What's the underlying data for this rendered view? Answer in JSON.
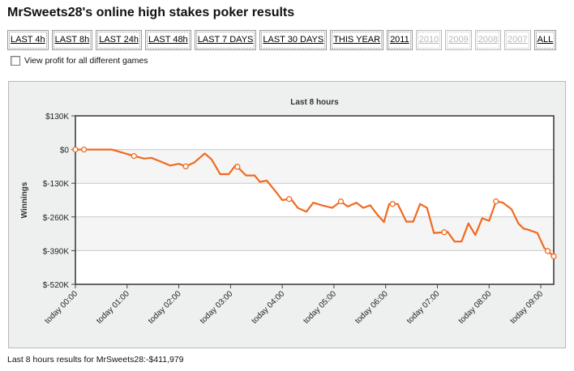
{
  "page": {
    "title": "MrSweets28's online high stakes poker results",
    "tabs": [
      {
        "label": "LAST 4h",
        "enabled": true
      },
      {
        "label": "LAST 8h",
        "enabled": true
      },
      {
        "label": "LAST 24h",
        "enabled": true
      },
      {
        "label": "LAST 48h",
        "enabled": true
      },
      {
        "label": "LAST 7 DAYS",
        "enabled": true
      },
      {
        "label": "LAST 30 DAYS",
        "enabled": true
      },
      {
        "label": "THIS YEAR",
        "enabled": true
      },
      {
        "label": "2011",
        "enabled": true
      },
      {
        "label": "2010",
        "enabled": false
      },
      {
        "label": "2009",
        "enabled": false
      },
      {
        "label": "2008",
        "enabled": false
      },
      {
        "label": "2007",
        "enabled": false
      },
      {
        "label": "ALL",
        "enabled": true
      }
    ],
    "checkbox_label": "View profit for all different games",
    "checkbox_checked": false,
    "footer": "Last 8 hours results for MrSweets28:-$411,979"
  },
  "colors": {
    "line": "#f06a20",
    "plot_background": "#ffffff",
    "plot_band": "#f5f5f5",
    "panel_background": "#eef0ef"
  },
  "chart_data": {
    "type": "line",
    "title": "Last 8 hours",
    "xlabel": "",
    "ylabel": "Winnings",
    "ylim": [
      -520,
      130
    ],
    "y_unit": "thousand USD",
    "y_ticks": [
      130,
      0,
      -130,
      -260,
      -390,
      -520
    ],
    "y_tick_labels": [
      "$130K",
      "$0",
      "$-130K",
      "$-260K",
      "$-390K",
      "$-520K"
    ],
    "xlim": [
      0,
      555
    ],
    "x_unit": "minutes since today 00:00",
    "x_ticks": [
      0,
      60,
      120,
      180,
      240,
      300,
      360,
      420,
      480,
      540
    ],
    "x_tick_labels": [
      "today 00:00",
      "today 01:00",
      "today 02:00",
      "today 03:00",
      "today 04:00",
      "today 05:00",
      "today 06:00",
      "today 07:00",
      "today 08:00",
      "today 09:00"
    ],
    "grid": true,
    "legend": "none",
    "series": [
      {
        "x": [
          0,
          10,
          42,
          68,
          80,
          88,
          98,
          110,
          120,
          128,
          138,
          150,
          158,
          168,
          178,
          186,
          198,
          208,
          214,
          222,
          232,
          240,
          250,
          258,
          268,
          276,
          286,
          298,
          308,
          316,
          326,
          334,
          342,
          350,
          358,
          364,
          374,
          384,
          392,
          400,
          408,
          416,
          424,
          432,
          440,
          448,
          456,
          464,
          472,
          480,
          488,
          496,
          506,
          514,
          520,
          526,
          536,
          544,
          555
        ],
        "y": [
          0,
          0,
          0,
          -25,
          -35,
          -32,
          -45,
          -62,
          -55,
          -65,
          -50,
          -15,
          -38,
          -95,
          -95,
          -60,
          -100,
          -100,
          -125,
          -120,
          -160,
          -195,
          -190,
          -225,
          -240,
          -205,
          -215,
          -225,
          -200,
          -220,
          -205,
          -225,
          -215,
          -250,
          -280,
          -210,
          -210,
          -278,
          -278,
          -210,
          -225,
          -322,
          -320,
          -318,
          -355,
          -355,
          -285,
          -330,
          -265,
          -275,
          -200,
          -205,
          -230,
          -285,
          -305,
          -310,
          -322,
          -380,
          -412
        ]
      }
    ],
    "marker_points_x": [
      0,
      10,
      68,
      128,
      188,
      248,
      308,
      368,
      428,
      488,
      548,
      555
    ]
  }
}
